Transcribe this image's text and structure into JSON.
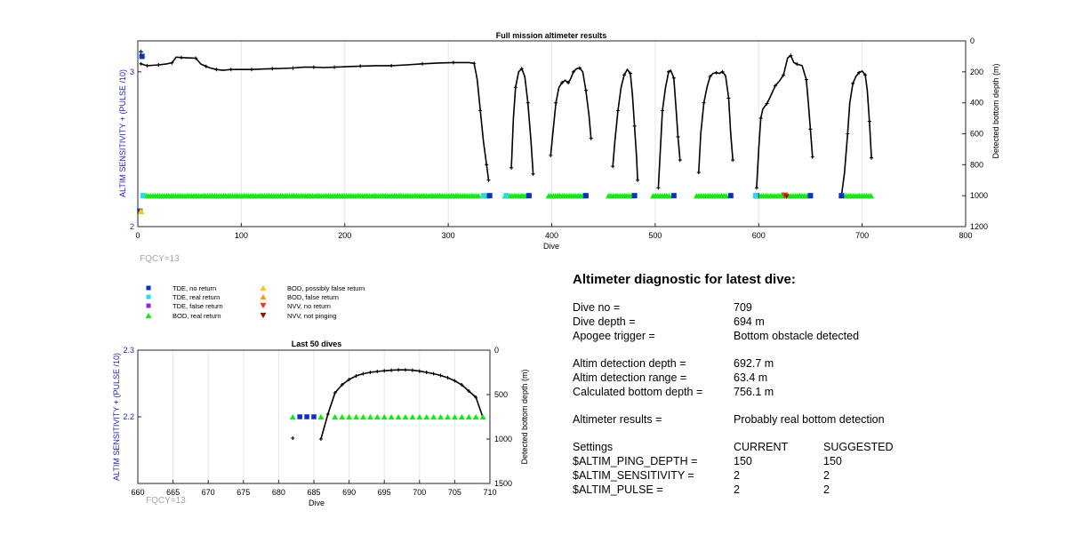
{
  "colors": {
    "axis_label": "#1f1fb4",
    "grey_text": "#a6a6a6",
    "tde_no_return": "#0b2fc9",
    "tde_real_return": "#2fd8e6",
    "tde_false_return": "#8a2be2",
    "bod_real_return": "#19e619",
    "bod_possibly_false": "#f5c518",
    "bod_false": "#f0a020",
    "nvv_no_return": "#e0401a",
    "nvv_not_pinging": "#8b1a0a",
    "depth_line": "#000000"
  },
  "fqcy_top": "FQCY=13",
  "fqcy_bottom": "FQCY=13",
  "legend": [
    {
      "marker": "square",
      "color": "#0b2fc9",
      "label": "TDE, no return"
    },
    {
      "marker": "square",
      "color": "#2fd8e6",
      "label": "TDE, real return"
    },
    {
      "marker": "square",
      "color": "#8a2be2",
      "label": "TDE, false return"
    },
    {
      "marker": "triangle-up",
      "color": "#19e619",
      "label": "BOD, real return"
    },
    {
      "marker": "triangle-up",
      "color": "#f5c518",
      "label": "BOD, possibly false return"
    },
    {
      "marker": "triangle-up",
      "color": "#f0a020",
      "label": "BOD, false return"
    },
    {
      "marker": "triangle-down",
      "color": "#e0401a",
      "label": "NVV, no return"
    },
    {
      "marker": "triangle-down",
      "color": "#8b1a0a",
      "label": "NVV, not pinging"
    }
  ],
  "chart_data": [
    {
      "type": "scatter",
      "title": "Full mission altimeter results",
      "xlabel": "Dive",
      "ylabel_left": "ALTIM SENSITIVITY + (PULSE /10)",
      "ylabel_right": "Detected bottom depth (m)",
      "xlim": [
        0,
        800
      ],
      "ylim_left": [
        2,
        3.2
      ],
      "ylim_right": [
        1200,
        0
      ],
      "xticks": [
        0,
        100,
        200,
        300,
        400,
        500,
        600,
        700,
        800
      ],
      "yticks_left": [
        2,
        3
      ],
      "yticks_right": [
        0,
        200,
        400,
        600,
        800,
        1000,
        1200
      ],
      "grid": "vertical",
      "depth_segments": [
        [
          [
            3,
            148
          ],
          [
            6,
            155
          ],
          [
            9,
            160
          ],
          [
            14,
            158
          ],
          [
            20,
            155
          ],
          [
            27,
            150
          ],
          [
            33,
            142
          ],
          [
            37,
            105
          ],
          [
            42,
            108
          ],
          [
            50,
            110
          ],
          [
            56,
            112
          ],
          [
            61,
            150
          ],
          [
            66,
            165
          ],
          [
            70,
            175
          ],
          [
            76,
            185
          ],
          [
            82,
            190
          ],
          [
            90,
            185
          ],
          [
            100,
            185
          ],
          [
            110,
            185
          ],
          [
            120,
            182
          ],
          [
            130,
            180
          ],
          [
            140,
            178
          ],
          [
            150,
            175
          ],
          [
            160,
            170
          ],
          [
            170,
            170
          ],
          [
            180,
            172
          ],
          [
            190,
            170
          ],
          [
            200,
            167
          ],
          [
            215,
            163
          ],
          [
            230,
            160
          ],
          [
            245,
            160
          ],
          [
            260,
            155
          ],
          [
            275,
            148
          ],
          [
            290,
            143
          ],
          [
            305,
            140
          ],
          [
            320,
            140
          ],
          [
            325,
            145
          ],
          [
            328,
            250
          ],
          [
            331,
            450
          ],
          [
            334,
            650
          ],
          [
            337,
            800
          ],
          [
            339,
            900
          ]
        ],
        [
          [
            361,
            820
          ],
          [
            363,
            500
          ],
          [
            365,
            300
          ],
          [
            368,
            200
          ],
          [
            371,
            180
          ],
          [
            374,
            230
          ],
          [
            377,
            400
          ],
          [
            380,
            650
          ],
          [
            382,
            860
          ]
        ],
        [
          [
            399,
            740
          ],
          [
            401,
            600
          ],
          [
            404,
            400
          ],
          [
            407,
            300
          ],
          [
            410,
            270
          ],
          [
            413,
            255
          ],
          [
            416,
            270
          ],
          [
            418,
            250
          ],
          [
            421,
            200
          ],
          [
            424,
            180
          ],
          [
            427,
            175
          ],
          [
            430,
            200
          ],
          [
            433,
            320
          ],
          [
            436,
            480
          ],
          [
            438,
            630
          ]
        ],
        [
          [
            459,
            810
          ],
          [
            461,
            650
          ],
          [
            464,
            450
          ],
          [
            467,
            300
          ],
          [
            470,
            220
          ],
          [
            473,
            185
          ],
          [
            476,
            210
          ],
          [
            478,
            350
          ],
          [
            480,
            550
          ],
          [
            482,
            750
          ],
          [
            483,
            900
          ]
        ],
        [
          [
            503,
            950
          ],
          [
            505,
            700
          ],
          [
            507,
            450
          ],
          [
            510,
            300
          ],
          [
            513,
            200
          ],
          [
            515,
            190
          ],
          [
            518,
            240
          ],
          [
            520,
            420
          ],
          [
            522,
            620
          ],
          [
            524,
            770
          ]
        ],
        [
          [
            542,
            850
          ],
          [
            544,
            600
          ],
          [
            547,
            400
          ],
          [
            550,
            300
          ],
          [
            553,
            230
          ],
          [
            556,
            210
          ],
          [
            559,
            205
          ],
          [
            562,
            210
          ],
          [
            565,
            200
          ],
          [
            568,
            225
          ],
          [
            571,
            370
          ],
          [
            573,
            600
          ],
          [
            575,
            770
          ]
        ],
        [
          [
            598,
            950
          ],
          [
            600,
            700
          ],
          [
            602,
            500
          ],
          [
            604,
            440
          ],
          [
            608,
            405
          ],
          [
            612,
            350
          ],
          [
            616,
            290
          ],
          [
            620,
            260
          ],
          [
            624,
            220
          ],
          [
            628,
            110
          ],
          [
            631,
            95
          ],
          [
            634,
            140
          ],
          [
            637,
            150
          ],
          [
            642,
            160
          ],
          [
            646,
            250
          ],
          [
            648,
            400
          ],
          [
            650,
            570
          ],
          [
            652,
            750
          ]
        ],
        [
          [
            680,
            1000
          ],
          [
            683,
            850
          ],
          [
            686,
            600
          ],
          [
            688,
            400
          ],
          [
            691,
            275
          ],
          [
            694,
            230
          ],
          [
            697,
            205
          ],
          [
            700,
            195
          ],
          [
            703,
            220
          ],
          [
            705,
            320
          ],
          [
            707,
            520
          ],
          [
            709,
            756
          ]
        ]
      ],
      "markers": {
        "bod_real_return_segments": [
          [
            8,
            330
          ],
          [
            335,
            338
          ],
          [
            355,
            375
          ],
          [
            397,
            433
          ],
          [
            455,
            478
          ],
          [
            498,
            515
          ],
          [
            540,
            570
          ],
          [
            598,
            650
          ],
          [
            680,
            710
          ]
        ],
        "tde_no_return_points": [
          340,
          378,
          433,
          480,
          518,
          573,
          598,
          650,
          680
        ],
        "tde_real_return_points": [
          5,
          334,
          356,
          597
        ],
        "tde_no_return_top": [
          4,
          3.1
        ],
        "tde_no_return_bottom": [
          2,
          2.1
        ],
        "bod_possibly_false_bottom": [
          3,
          2.1
        ],
        "nvv_no_return_point": [
          625,
          2.2
        ],
        "nvv_not_pinging_point": [
          627,
          2.2
        ]
      }
    },
    {
      "type": "scatter",
      "title": "Last 50 dives",
      "xlabel": "Dive",
      "ylabel_left": "ALTIM SENSITIVITY + (PULSE /10)",
      "ylabel_right": "Detected bottom depth (m)",
      "xlim": [
        660,
        710
      ],
      "ylim_left": [
        2.1,
        2.3
      ],
      "ylim_right": [
        1500,
        0
      ],
      "xticks": [
        660,
        665,
        670,
        675,
        680,
        685,
        690,
        695,
        700,
        705,
        710
      ],
      "yticks_left": [
        2.2,
        2.3
      ],
      "yticks_right": [
        0,
        500,
        1000,
        1500
      ],
      "grid": "vertical",
      "tde_no_return_dives": [
        683,
        684,
        685
      ],
      "bod_real_return_dives": [
        682,
        686,
        688,
        689,
        690,
        691,
        692,
        693,
        694,
        695,
        696,
        697,
        698,
        699,
        700,
        701,
        702,
        703,
        704,
        705,
        706,
        707,
        708,
        709
      ],
      "sensitivity_level": 2.2,
      "isolated_depth_points": [
        [
          682,
          990
        ]
      ],
      "depth_curve": [
        [
          686,
          1000
        ],
        [
          687,
          720
        ],
        [
          688,
          480
        ],
        [
          689,
          390
        ],
        [
          690,
          330
        ],
        [
          691,
          290
        ],
        [
          692,
          265
        ],
        [
          693,
          250
        ],
        [
          694,
          240
        ],
        [
          695,
          232
        ],
        [
          696,
          226
        ],
        [
          697,
          222
        ],
        [
          698,
          222
        ],
        [
          699,
          226
        ],
        [
          700,
          236
        ],
        [
          701,
          250
        ],
        [
          702,
          265
        ],
        [
          703,
          285
        ],
        [
          704,
          310
        ],
        [
          705,
          345
        ],
        [
          706,
          390
        ],
        [
          707,
          460
        ],
        [
          708,
          530
        ],
        [
          709,
          756
        ]
      ]
    }
  ],
  "diagnostic": {
    "heading": "Altimeter diagnostic for latest dive:",
    "dive_no_label": "Dive no =",
    "dive_no_value": "709",
    "dive_depth_label": "Dive depth =",
    "dive_depth_value": "694 m",
    "apogee_label": "Apogee trigger =",
    "apogee_value": "Bottom obstacle detected",
    "altim_det_depth_label": "Altim detection depth =",
    "altim_det_depth_value": "692.7 m",
    "altim_det_range_label": "Altim detection range =",
    "altim_det_range_value": "63.4 m",
    "calc_bottom_label": "Calculated bottom depth =",
    "calc_bottom_value": "756.1 m",
    "results_label": "Altimeter results =",
    "results_value": "Probably real bottom detection",
    "settings_label": "Settings",
    "current_header": "CURRENT",
    "suggested_header": "SUGGESTED",
    "ping_depth_label": "$ALTIM_PING_DEPTH =",
    "ping_depth_current": "150",
    "ping_depth_suggested": "150",
    "sensitivity_label": "$ALTIM_SENSITIVITY =",
    "sensitivity_current": "2",
    "sensitivity_suggested": "2",
    "pulse_label": "$ALTIM_PULSE =",
    "pulse_current": "2",
    "pulse_suggested": "2"
  }
}
